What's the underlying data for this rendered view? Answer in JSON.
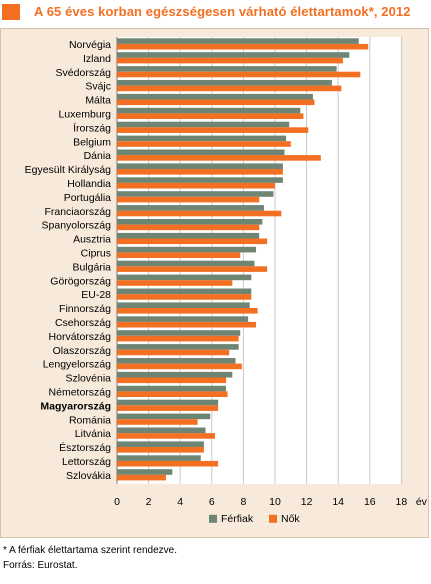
{
  "title": "A 65 éves korban egészségesen várható élettartamok*, 2012",
  "footnote": "* A férfiak élettartama szerint rendezve.",
  "source": "Forrás: Eurostat.",
  "colors": {
    "accent": "#f36f21",
    "male": "#6e8574",
    "female": "#f36f21",
    "background": "#f7eadb"
  },
  "chart_data": {
    "type": "bar",
    "orientation": "horizontal",
    "title": "A 65 éves korban egészségesen várható élettartamok*, 2012",
    "xlabel": "év",
    "xlim": [
      0,
      18
    ],
    "xticks": [
      0,
      2,
      4,
      6,
      8,
      10,
      12,
      14,
      16,
      18
    ],
    "grid": true,
    "legend": "bottom",
    "highlight_category": "Magyarország",
    "categories": [
      "Norvégia",
      "Izland",
      "Svédország",
      "Svájc",
      "Málta",
      "Luxemburg",
      "Írország",
      "Belgium",
      "Dánia",
      "Egyesült Királyság",
      "Hollandia",
      "Portugália",
      "Franciaország",
      "Spanyolország",
      "Ausztria",
      "Ciprus",
      "Bulgária",
      "Görögország",
      "EU-28",
      "Finnország",
      "Csehország",
      "Horvátország",
      "Olaszország",
      "Lengyelország",
      "Szlovénia",
      "Németország",
      "Magyarország",
      "Románia",
      "Litvánia",
      "Észtország",
      "Lettország",
      "Szlovákia"
    ],
    "series": [
      {
        "name": "Férfiak",
        "values": [
          15.3,
          14.7,
          13.9,
          13.6,
          12.4,
          11.6,
          10.9,
          10.7,
          10.6,
          10.5,
          10.5,
          9.9,
          9.3,
          9.2,
          9.0,
          8.8,
          8.7,
          8.5,
          8.5,
          8.4,
          8.3,
          7.8,
          7.7,
          7.5,
          7.3,
          6.9,
          6.4,
          5.9,
          5.6,
          5.5,
          5.3,
          3.5
        ]
      },
      {
        "name": "Nők",
        "values": [
          15.9,
          14.3,
          15.4,
          14.2,
          12.5,
          11.8,
          12.1,
          11.0,
          12.9,
          10.5,
          10.0,
          9.0,
          10.4,
          9.0,
          9.5,
          7.8,
          9.5,
          7.3,
          8.5,
          8.9,
          8.8,
          7.7,
          7.1,
          7.9,
          6.9,
          7.0,
          6.4,
          5.1,
          6.2,
          5.5,
          6.4,
          3.1
        ]
      }
    ]
  }
}
